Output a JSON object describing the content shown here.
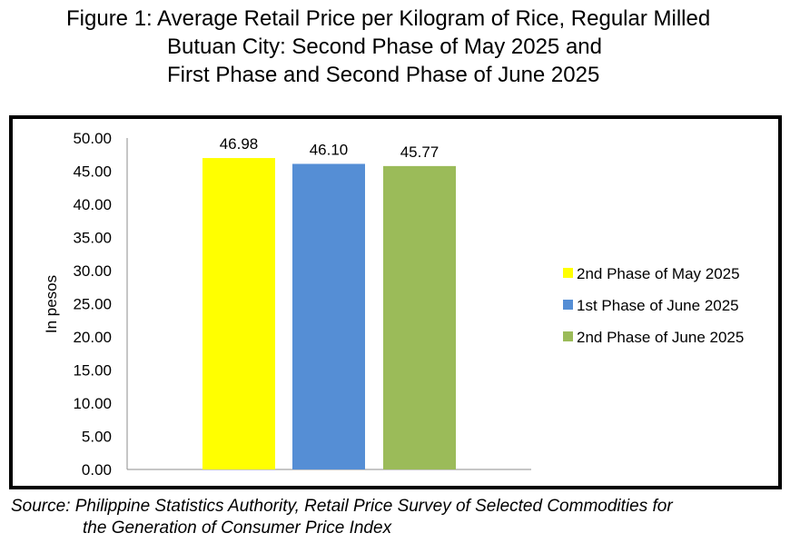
{
  "title_lines": [
    "Figure 1: Average Retail Price per Kilogram of Rice, Regular Milled",
    "Butuan City: Second Phase of May 2025 and",
    "First Phase and Second Phase of June 2025"
  ],
  "source_lines": [
    "Source: Philippine Statistics Authority, Retail Price Survey of Selected Commodities for",
    "the Generation of Consumer Price Index"
  ],
  "chart_data": {
    "type": "bar",
    "title": "Figure 1: Average Retail Price per Kilogram of Rice, Regular Milled Butuan City: Second Phase of May 2025 and First Phase and Second Phase of June 2025",
    "xlabel": "",
    "ylabel": "In pesos",
    "ylim": [
      0,
      50
    ],
    "yticks": [
      "0.00",
      "5.00",
      "10.00",
      "15.00",
      "20.00",
      "25.00",
      "30.00",
      "35.00",
      "40.00",
      "45.00",
      "50.00"
    ],
    "grid": false,
    "legend_position": "right",
    "series": [
      {
        "name": "2nd Phase of May 2025",
        "values": [
          46.98
        ],
        "label": "46.98",
        "color": "#ffff00"
      },
      {
        "name": "1st Phase of June 2025",
        "values": [
          46.1
        ],
        "label": "46.10",
        "color": "#558ed5"
      },
      {
        "name": "2nd Phase of June 2025",
        "values": [
          45.77
        ],
        "label": "45.77",
        "color": "#9bbb59"
      }
    ]
  }
}
